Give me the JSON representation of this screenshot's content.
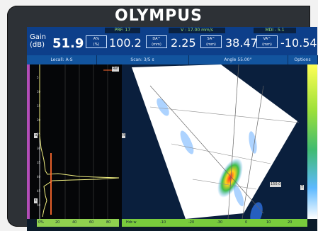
{
  "brand": "OLYMPUS",
  "status": {
    "prf": "PRF: 17",
    "v": "V : 17.00 mm/s",
    "mode": "MDI - 5.1"
  },
  "readings": {
    "gain_label": "Gain\n(dB)",
    "gain_value": "51.9",
    "items": [
      {
        "label": "A%\n(%)",
        "value": "100.2"
      },
      {
        "label": "DA^\n(mm)",
        "value": "2.25"
      },
      {
        "label": "SA^\n(mm)",
        "value": "38.47"
      },
      {
        "label": "VA^\n(mm)",
        "value": "-10.54"
      }
    ]
  },
  "tabs": [
    "Lecall: A-S",
    "Scan: 3/5 s",
    "Angle 55.00°",
    "Options"
  ],
  "ascan": {
    "ref_flag": "Ref",
    "markers": [
      "u",
      "s"
    ]
  },
  "sector": {
    "flags": [
      "R",
      "T",
      "150.0"
    ]
  },
  "axis": {
    "a_ticks": [
      "0%",
      "20",
      "40",
      "60",
      "80"
    ],
    "s_ticks": [
      "Hdr-w",
      "-10",
      "-20",
      "-30",
      "0",
      "10",
      "20"
    ]
  },
  "colors": {
    "topbar": "#0d3f8a",
    "screen": "#0b1b2a",
    "trace": "#f2f081",
    "gate": "#ff6b2e"
  }
}
